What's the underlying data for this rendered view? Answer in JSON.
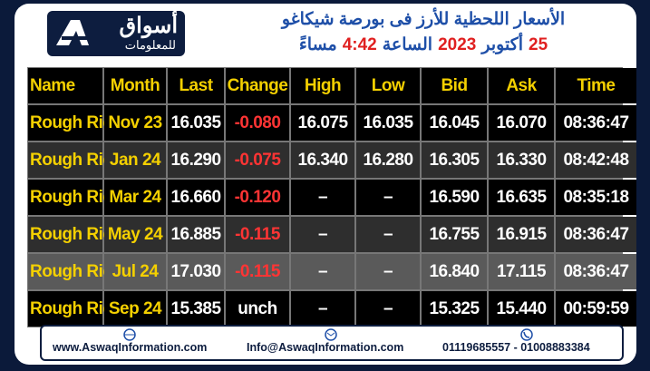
{
  "header": {
    "logo_title": "أسواق",
    "logo_subtitle": "للمعلومات",
    "title": "الأسعار اللحظية للأرز فى بورصة شيكاغو",
    "subtitle_parts": [
      "25",
      "أكتوبر",
      "2023",
      "الساعة",
      "4:42",
      "مساءً"
    ]
  },
  "table": {
    "columns": [
      "Name",
      "Month",
      "Last",
      "Change",
      "High",
      "Low",
      "Bid",
      "Ask",
      "Time"
    ],
    "rows": [
      {
        "cells": [
          "Rough Rice",
          "Nov 23",
          "16.035",
          "-0.080",
          "16.075",
          "16.035",
          "16.045",
          "16.070",
          "08:36:47"
        ],
        "change_color": "#ff3434"
      },
      {
        "cells": [
          "Rough Rice",
          "Jan 24",
          "16.290",
          "-0.075",
          "16.340",
          "16.280",
          "16.305",
          "16.330",
          "08:42:48"
        ],
        "change_color": "#ff3434"
      },
      {
        "cells": [
          "Rough Rice",
          "Mar 24",
          "16.660",
          "-0.120",
          "–",
          "–",
          "16.590",
          "16.635",
          "08:35:18"
        ],
        "change_color": "#ff3434"
      },
      {
        "cells": [
          "Rough Rice",
          "May 24",
          "16.885",
          "-0.115",
          "–",
          "–",
          "16.755",
          "16.915",
          "08:36:47"
        ],
        "change_color": "#ff3434"
      },
      {
        "cells": [
          "Rough Rice",
          "Jul 24",
          "17.030",
          "-0.115",
          "–",
          "–",
          "16.840",
          "17.115",
          "08:36:47"
        ],
        "change_color": "#ff3434"
      },
      {
        "cells": [
          "Rough Rice",
          "Sep 24",
          "15.385",
          "unch",
          "–",
          "–",
          "15.325",
          "15.440",
          "00:59:59"
        ],
        "change_color": "#ffffff"
      }
    ]
  },
  "footer": {
    "website": "www.AswaqInformation.com",
    "email": "Info@AswaqInformation.com",
    "phones": "01119685557 - 01008883384"
  }
}
